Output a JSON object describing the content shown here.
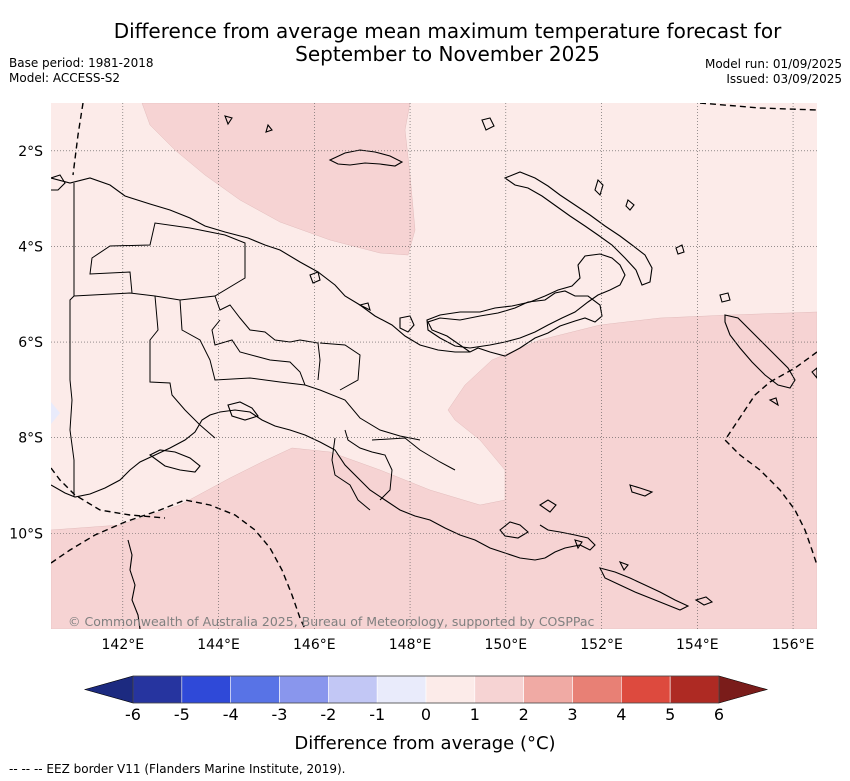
{
  "title_line1": "Difference from average mean maximum temperature forecast for",
  "title_line2": "September to November 2025",
  "base_period": "Base period: 1981-2018",
  "model": "Model: ACCESS-S2",
  "model_run": "Model run: 01/09/2025",
  "issued": "Issued: 03/09/2025",
  "copyright": "© Commonwealth of Australia 2025, Bureau of Meteorology, supported by COSPPac",
  "footer": "-- -- -- EEZ border V11 (Flanders Marine Institute, 2019).",
  "map": {
    "lon_range": [
      140.5,
      156.5
    ],
    "lat_range": [
      -12,
      -1
    ],
    "lon_ticks": [
      "142°E",
      "144°E",
      "146°E",
      "148°E",
      "150°E",
      "152°E",
      "154°E",
      "156°E"
    ],
    "lat_ticks": [
      "2°S",
      "4°S",
      "6°S",
      "8°S",
      "10°S"
    ]
  },
  "colorbar": {
    "title": "Difference from average (°C)",
    "tick_labels": [
      "-6",
      "-5",
      "-4",
      "-3",
      "-2",
      "-1",
      "0",
      "1",
      "2",
      "3",
      "4",
      "5",
      "6"
    ],
    "colors": [
      "#26349f",
      "#2f49d8",
      "#5873e6",
      "#8996ed",
      "#c2c7f5",
      "#e9ebfb",
      "#fcebe9",
      "#f6d3d3",
      "#f0aaa4",
      "#e88075",
      "#dd4a3e",
      "#ae2a23"
    ],
    "extend_low_color": "#1c2a80",
    "extend_high_color": "#7a1c1a"
  },
  "colors": {
    "anomaly_0_1": "#fcebe9",
    "anomaly_1_2": "#f6d3d3",
    "anomaly_m1_0": "#e9ebfb",
    "coast": "#000000",
    "grid": "#555555"
  }
}
